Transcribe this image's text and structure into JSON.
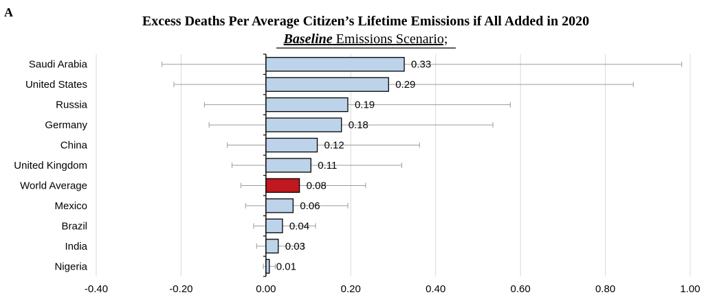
{
  "panel_letter": "A",
  "chart_data": {
    "type": "bar",
    "orientation": "horizontal",
    "title": "Excess Deaths Per Average Citizen’s Lifetime Emissions if All Added in 2020",
    "subtitle_emphasis": "Baseline",
    "subtitle_rest": " Emissions Scenario;",
    "xlim": [
      -0.4,
      1.0
    ],
    "xticks": [
      -0.4,
      -0.2,
      0.0,
      0.2,
      0.4,
      0.6,
      0.8,
      1.0
    ],
    "xtick_labels": [
      "-0.40",
      "-0.20",
      "0.00",
      "0.20",
      "0.40",
      "0.60",
      "0.80",
      "1.00"
    ],
    "grid": true,
    "categories": [
      "Saudi Arabia",
      "United States",
      "Russia",
      "Germany",
      "China",
      "United Kingdom",
      "World Average",
      "Mexico",
      "Brazil",
      "India",
      "Nigeria"
    ],
    "values": [
      0.326,
      0.289,
      0.193,
      0.178,
      0.121,
      0.106,
      0.079,
      0.064,
      0.039,
      0.029,
      0.008
    ],
    "value_labels": [
      "0.33",
      "0.29",
      "0.19",
      "0.18",
      "0.12",
      "0.11",
      "0.08",
      "0.06",
      "0.04",
      "0.03",
      "0.01"
    ],
    "error_low": [
      -0.245,
      -0.217,
      -0.145,
      -0.134,
      -0.091,
      -0.08,
      -0.059,
      -0.048,
      -0.029,
      -0.022,
      -0.006
    ],
    "error_high": [
      0.98,
      0.866,
      0.576,
      0.535,
      0.362,
      0.32,
      0.235,
      0.193,
      0.117,
      0.088,
      0.022
    ],
    "colors": {
      "bar": "#bcd3ea",
      "highlight": "#c0181f",
      "highlight_category": "World Average",
      "bar_stroke": "#000000",
      "grid": "#d9d9d9",
      "error_bar": "#9a9a9a"
    }
  }
}
